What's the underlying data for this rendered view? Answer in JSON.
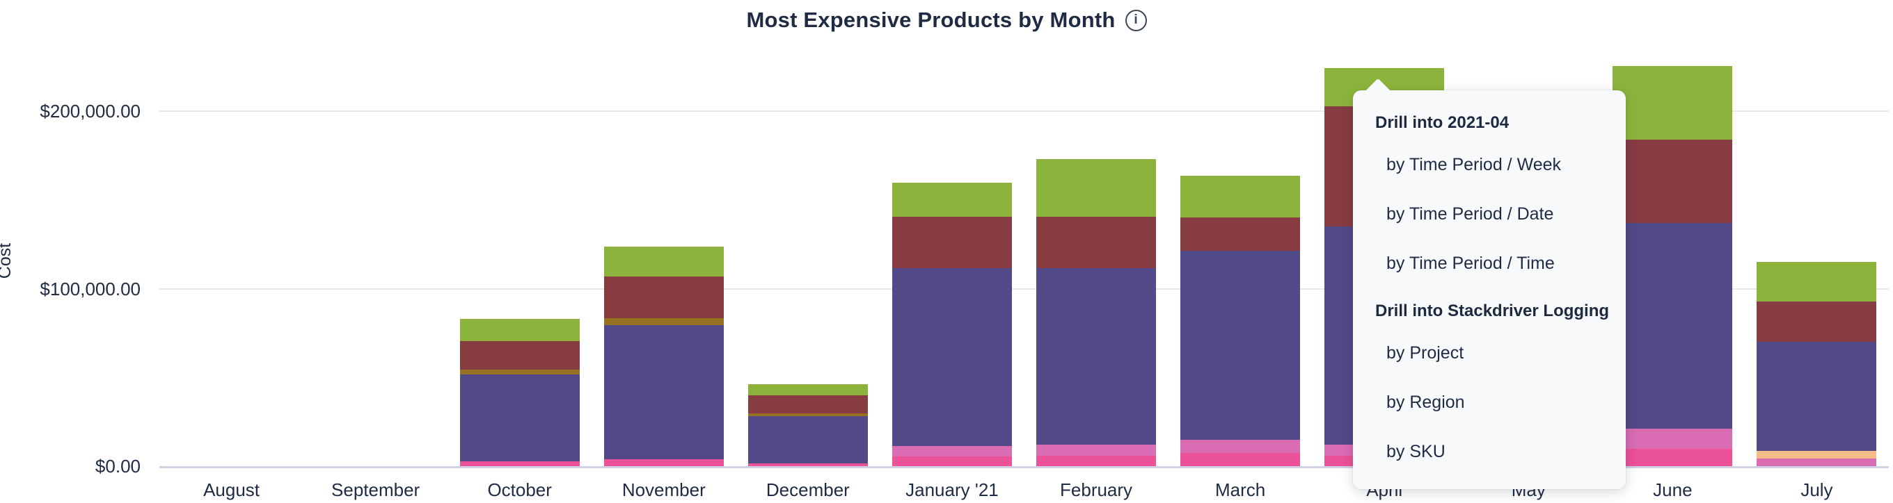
{
  "header": {
    "title": "Most Expensive Products by Month",
    "info_glyph": "i",
    "info_icon_name": "info-icon"
  },
  "chart_data": {
    "type": "bar",
    "stacked": true,
    "title": "Most Expensive Products by Month",
    "xlabel": "",
    "ylabel": "Cost",
    "grid": true,
    "legend": "none",
    "ylim": [
      0,
      240000
    ],
    "y_ticks": [
      {
        "label": "$0.00",
        "value": 0
      },
      {
        "label": "$100,000.00",
        "value": 100000
      },
      {
        "label": "$200,000.00",
        "value": 200000
      }
    ],
    "categories": [
      "August",
      "September",
      "October",
      "November",
      "December",
      "January '21",
      "February",
      "March",
      "April",
      "May",
      "June",
      "July"
    ],
    "occluded_categories": [
      "May"
    ],
    "occlusion_note": "May bar is fully hidden behind the open drill-down menu",
    "series": [
      {
        "name": "segment-pink",
        "color": "#EC5297",
        "values": [
          0,
          0,
          2700,
          3900,
          1600,
          5500,
          5900,
          7400,
          5900,
          null,
          9800,
          0
        ]
      },
      {
        "name": "segment-orchid",
        "color": "#DA6CB3",
        "values": [
          0,
          0,
          0,
          0,
          0,
          5900,
          6300,
          7400,
          6300,
          null,
          11400,
          4300
        ]
      },
      {
        "name": "segment-peach",
        "color": "#F4BD88",
        "values": [
          0,
          0,
          0,
          0,
          0,
          0,
          0,
          0,
          0,
          null,
          0,
          4300
        ]
      },
      {
        "name": "segment-purple",
        "color": "#524A88",
        "values": [
          0,
          0,
          48900,
          75500,
          26600,
          100200,
          99400,
          106500,
          122900,
          null,
          115900,
          61400
        ]
      },
      {
        "name": "segment-olive",
        "color": "#967122",
        "values": [
          0,
          0,
          2700,
          3900,
          1600,
          0,
          0,
          0,
          0,
          null,
          0,
          0
        ]
      },
      {
        "name": "segment-maroon",
        "color": "#873C42",
        "values": [
          0,
          0,
          16000,
          23500,
          10200,
          29000,
          29000,
          18800,
          67700,
          null,
          47000,
          22700
        ]
      },
      {
        "name": "segment-green",
        "color": "#8CB43C",
        "values": [
          0,
          0,
          12500,
          16800,
          6300,
          19200,
          32500,
          23500,
          21500,
          null,
          41500,
          22300
        ]
      }
    ]
  },
  "drill_menu": {
    "anchor_category": "April",
    "sections": [
      {
        "header": "Drill into 2021-04",
        "items": [
          "by Time Period / Week",
          "by Time Period / Date",
          "by Time Period / Time"
        ]
      },
      {
        "header": "Drill into Stackdriver Logging",
        "items": [
          "by Project",
          "by Region",
          "by SKU"
        ]
      }
    ]
  },
  "colors": {
    "text": "#1F2B42",
    "gridline": "#E8E9ED",
    "axis_line": "#CDD3E4",
    "menu_background": "#F8F9FB"
  }
}
